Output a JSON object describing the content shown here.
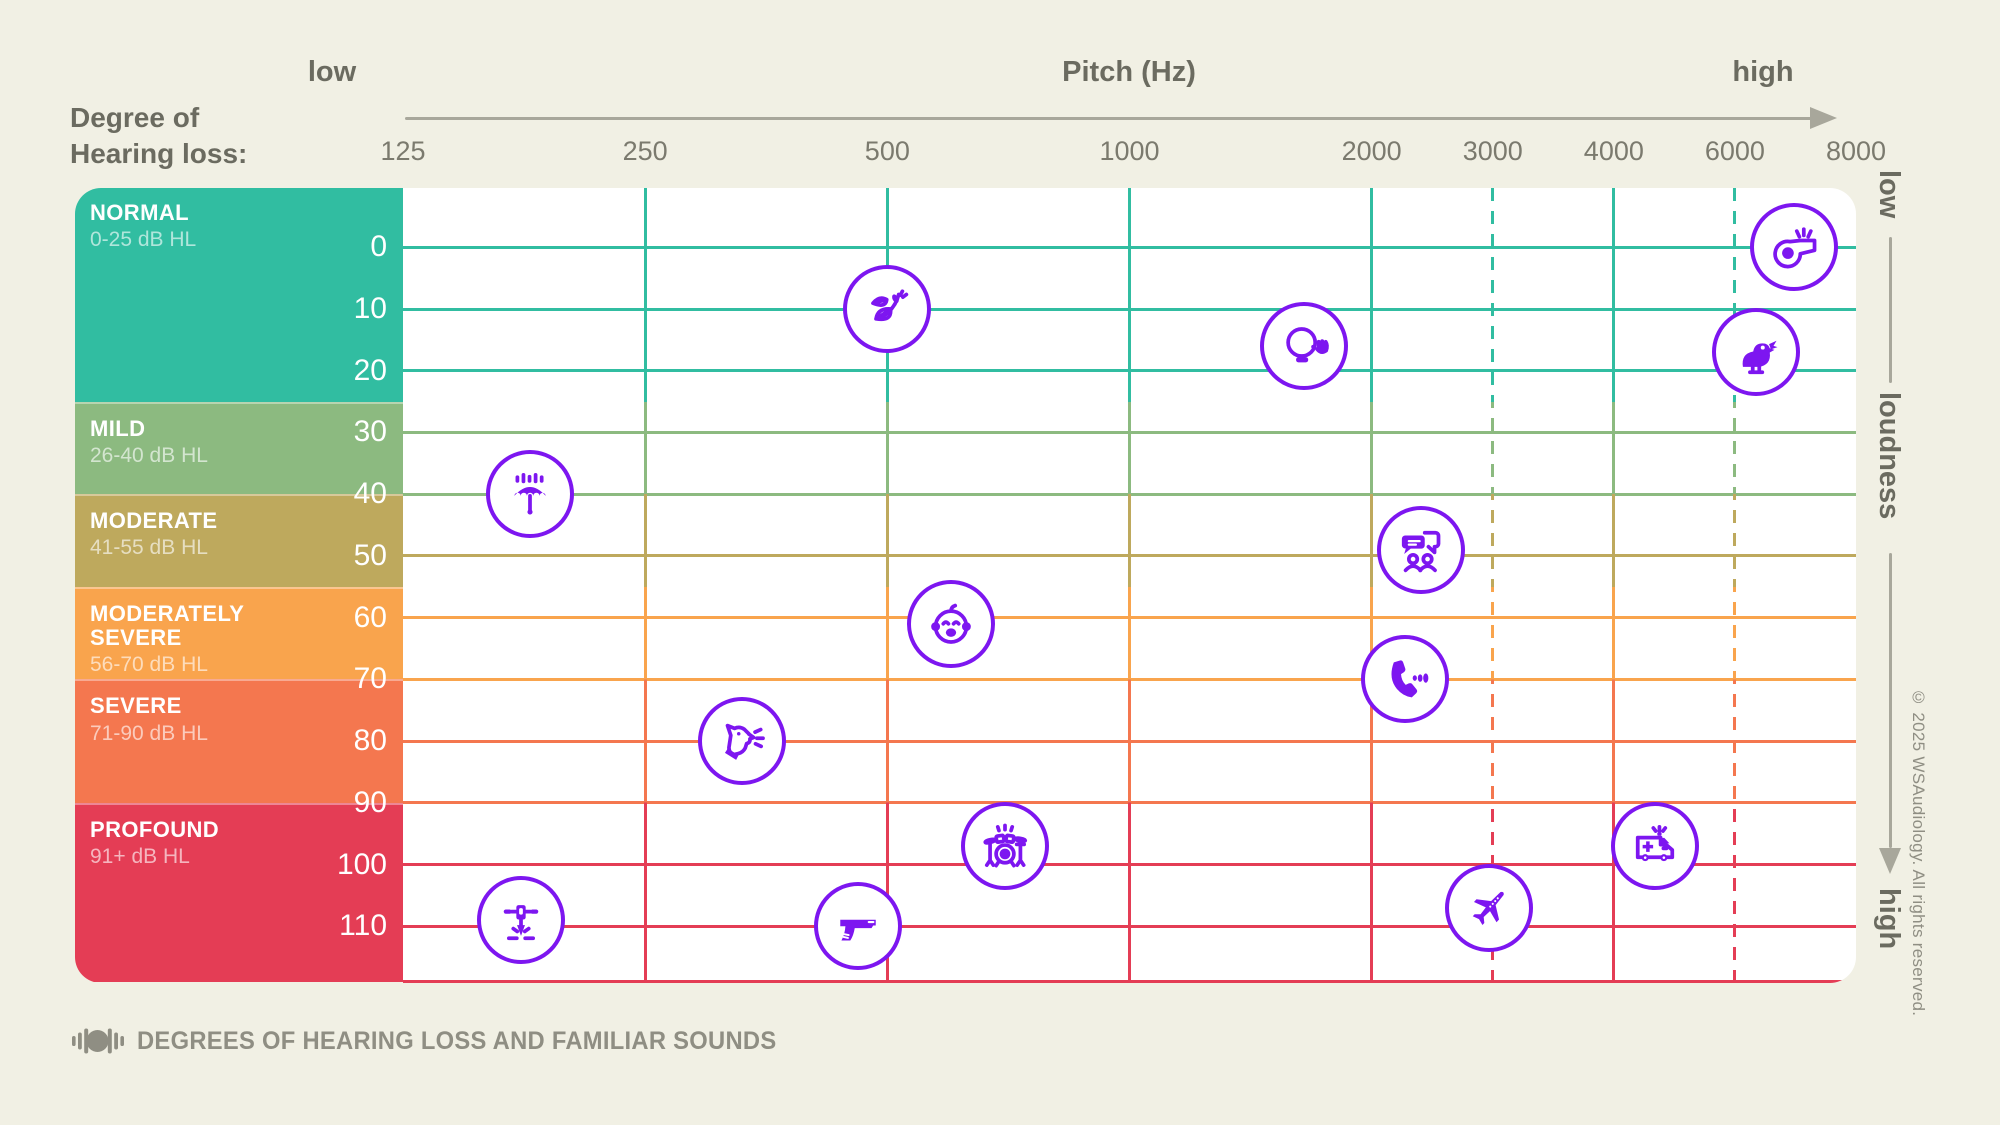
{
  "header": {
    "degree_title_line1": "Degree of",
    "degree_title_line2": "Hearing loss:",
    "axis_title": "Pitch (Hz)",
    "axis_low_label": "low",
    "axis_high_label": "high"
  },
  "loudness_rail": {
    "top_label": "low",
    "middle_label": "loudness",
    "bottom_label": "high"
  },
  "footer": {
    "caption": "DEGREES OF HEARING LOSS AND FAMILIAR SOUNDS",
    "copyright": "© 2025 WSAudiology. All rights reserved.",
    "logo": "soundwave-logo"
  },
  "colors": {
    "background": "#f1f0e4",
    "plot_background": "#ffffff",
    "icon_purple": "#7d16f0",
    "axis_gray": "#a8a79b",
    "title_gray": "#6b6b60",
    "tick_gray": "#7b7a6e",
    "footer_gray": "#8f8e83"
  },
  "chart_data": {
    "type": "scatter",
    "title": "Degrees of hearing loss and familiar sounds",
    "legend": "none",
    "grid": true,
    "x_axis": {
      "label": "Pitch (Hz)",
      "scale": "log (equal octaves, 3000/6000 at half-octave)",
      "ticks": [
        {
          "label": "125",
          "oct": 0
        },
        {
          "label": "250",
          "oct": 1
        },
        {
          "label": "500",
          "oct": 2
        },
        {
          "label": "1000",
          "oct": 3
        },
        {
          "label": "2000",
          "oct": 4
        },
        {
          "label": "3000",
          "oct": 4.5
        },
        {
          "label": "4000",
          "oct": 5
        },
        {
          "label": "6000",
          "oct": 5.5
        },
        {
          "label": "8000",
          "oct": 6
        }
      ],
      "gridlines": [
        {
          "oct": 1,
          "dashed": false
        },
        {
          "oct": 2,
          "dashed": false
        },
        {
          "oct": 3,
          "dashed": false
        },
        {
          "oct": 4,
          "dashed": false
        },
        {
          "oct": 4.5,
          "dashed": true
        },
        {
          "oct": 5,
          "dashed": false
        },
        {
          "oct": 5.5,
          "dashed": true
        }
      ]
    },
    "y_axis": {
      "label": "loudness (dB HL)",
      "ticks": [
        0,
        10,
        20,
        30,
        40,
        50,
        60,
        70,
        80,
        90,
        100,
        110
      ],
      "range": [
        -10,
        119
      ],
      "bottom_edge_db": 119
    },
    "bands": [
      {
        "name": "NORMAL",
        "range": "0-25 dB HL",
        "db_from": -10,
        "db_to": 25,
        "color": "#31bda1"
      },
      {
        "name": "MILD",
        "range": "26-40 dB HL",
        "db_from": 25,
        "db_to": 40,
        "color": "#8cba80"
      },
      {
        "name": "MODERATE",
        "range": "41-55 dB HL",
        "db_from": 40,
        "db_to": 55,
        "color": "#bea95d"
      },
      {
        "name": "MODERATELY SEVERE",
        "range": "56-70 dB HL",
        "db_from": 55,
        "db_to": 70,
        "color": "#f9a44d"
      },
      {
        "name": "SEVERE",
        "range": "71-90 dB HL",
        "db_from": 70,
        "db_to": 90,
        "color": "#f4774f"
      },
      {
        "name": "PROFOUND",
        "range": "91+ dB HL",
        "db_from": 90,
        "db_to": 119,
        "color": "#e43d55"
      }
    ],
    "sounds": [
      {
        "id": "whistle",
        "label": "whistle",
        "hz": 6700,
        "db": 0
      },
      {
        "id": "leaves",
        "label": "rustling leaves",
        "hz": 500,
        "db": 10
      },
      {
        "id": "whisper",
        "label": "whisper",
        "hz": 1650,
        "db": 16
      },
      {
        "id": "bird",
        "label": "bird chirping",
        "hz": 6000,
        "db": 17
      },
      {
        "id": "rain",
        "label": "rain on umbrella",
        "hz": 180,
        "db": 40
      },
      {
        "id": "conversation",
        "label": "conversation",
        "hz": 2300,
        "db": 49
      },
      {
        "id": "baby",
        "label": "baby crying",
        "hz": 600,
        "db": 61
      },
      {
        "id": "phone",
        "label": "telephone",
        "hz": 2200,
        "db": 70
      },
      {
        "id": "dog",
        "label": "dog barking",
        "hz": 330,
        "db": 80
      },
      {
        "id": "drums",
        "label": "drum kit",
        "hz": 700,
        "db": 97
      },
      {
        "id": "ambulance",
        "label": "ambulance siren",
        "hz": 4500,
        "db": 97
      },
      {
        "id": "airplane",
        "label": "airplane",
        "hz": 2800,
        "db": 107
      },
      {
        "id": "gun",
        "label": "gunshot",
        "hz": 460,
        "db": 110
      },
      {
        "id": "jackhammer",
        "label": "jackhammer",
        "hz": 175,
        "db": 109
      }
    ]
  }
}
